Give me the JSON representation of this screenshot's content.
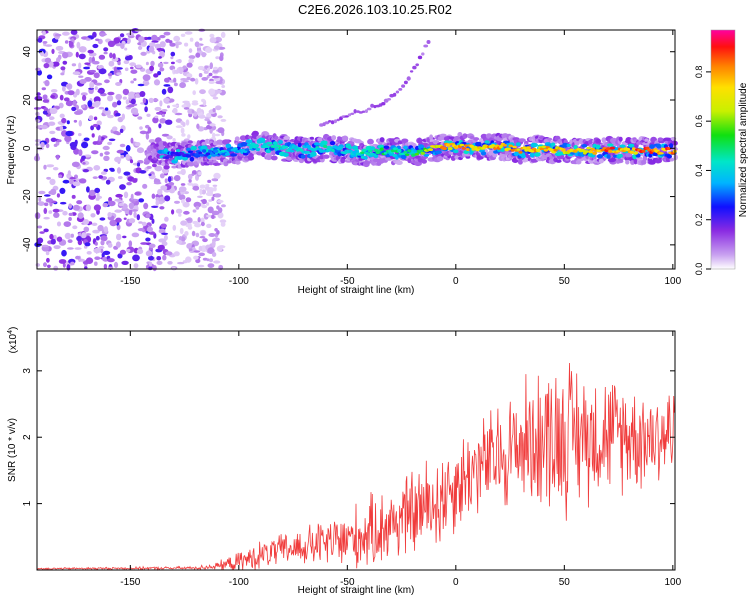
{
  "title": "C2E6.2026.103.10.25.R02",
  "chart_data": [
    {
      "type": "heatmap",
      "name": "spectrogram",
      "xlabel": "Height of straight line (km)",
      "ylabel": "Frequency (Hz)",
      "xlim": [
        -193,
        101
      ],
      "ylim": [
        -50,
        49
      ],
      "xticks": [
        -150,
        -100,
        -50,
        0,
        50,
        100
      ],
      "yticks": [
        -40,
        -20,
        0,
        20,
        40
      ],
      "colorbar": {
        "label": "Normalized spectral amplitude",
        "range": [
          0,
          0.97
        ],
        "ticks": [
          0.0,
          0.2,
          0.4,
          0.6,
          0.8
        ]
      },
      "ridge": {
        "x": [
          -130,
          -120,
          -110,
          -100,
          -90,
          -80,
          -70,
          -60,
          -50,
          -40,
          -30,
          -20,
          -10,
          0,
          10,
          20,
          30,
          40,
          50,
          60,
          70,
          80,
          90,
          100
        ],
        "frequency": [
          -3,
          -2,
          -2,
          -1,
          2,
          0,
          -1,
          0,
          -1,
          -2,
          -1,
          -2,
          0,
          1,
          0,
          1,
          -1,
          0,
          -1,
          -1,
          -1,
          -1,
          -1,
          -1
        ],
        "amplitude": [
          0.25,
          0.3,
          0.35,
          0.4,
          0.45,
          0.5,
          0.45,
          0.5,
          0.45,
          0.55,
          0.55,
          0.55,
          0.85,
          0.9,
          0.85,
          0.9,
          0.9,
          0.9,
          0.85,
          0.9,
          0.95,
          0.95,
          0.95,
          0.95
        ]
      },
      "harmonic": {
        "x": [
          -62,
          -55,
          -45,
          -35,
          -25,
          -18,
          -12
        ],
        "frequency": [
          10,
          12,
          15,
          18,
          24,
          35,
          45
        ]
      },
      "noise_region": [
        -193,
        -115
      ]
    },
    {
      "type": "line",
      "name": "snr",
      "xlabel": "Height of straight line (km)",
      "ylabel": "SNR (10 * v/v)",
      "multiplier": "(x10",
      "multiplier_exp": "4",
      "multiplier_close": ")",
      "xlim": [
        -193,
        101
      ],
      "ylim": [
        0,
        3.6
      ],
      "xticks": [
        -150,
        -100,
        -50,
        0,
        50,
        100
      ],
      "yticks": [
        1,
        2,
        3
      ],
      "color": "#f03c3c",
      "envelope": {
        "x": [
          -193,
          -120,
          -110,
          -100,
          -90,
          -80,
          -70,
          -60,
          -50,
          -40,
          -30,
          -20,
          -10,
          0,
          10,
          20,
          30,
          40,
          50,
          60,
          70,
          80,
          90,
          100
        ],
        "mean": [
          0.02,
          0.03,
          0.06,
          0.12,
          0.22,
          0.3,
          0.35,
          0.4,
          0.45,
          0.55,
          0.7,
          0.85,
          1.0,
          1.3,
          1.55,
          1.7,
          1.9,
          2.0,
          2.05,
          2.05,
          2.05,
          2.05,
          2.0,
          2.05
        ],
        "amplitude": [
          0.01,
          0.02,
          0.05,
          0.12,
          0.18,
          0.2,
          0.25,
          0.3,
          0.4,
          0.45,
          0.5,
          0.55,
          0.65,
          0.6,
          0.6,
          0.7,
          0.8,
          0.9,
          1.0,
          0.85,
          0.75,
          0.7,
          0.65,
          0.65
        ]
      }
    }
  ]
}
